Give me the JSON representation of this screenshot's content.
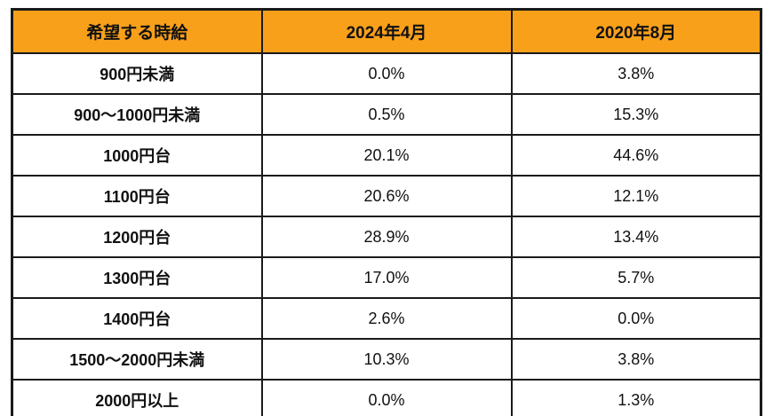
{
  "style": {
    "header_bg": "#F9A01B",
    "border_color": "#1a1a1a",
    "text_color": "#111111",
    "page_bg": "#ffffff"
  },
  "chart_data": {
    "type": "table",
    "title": "",
    "columns": [
      "希望する時給",
      "2024年4月",
      "2020年8月"
    ],
    "rows": [
      [
        "900円未満",
        "0.0%",
        "3.8%"
      ],
      [
        "900〜1000円未満",
        "0.5%",
        "15.3%"
      ],
      [
        "1000円台",
        "20.1%",
        "44.6%"
      ],
      [
        "1100円台",
        "20.6%",
        "12.1%"
      ],
      [
        "1200円台",
        "28.9%",
        "13.4%"
      ],
      [
        "1300円台",
        "17.0%",
        "5.7%"
      ],
      [
        "1400円台",
        "2.6%",
        "0.0%"
      ],
      [
        "1500〜2000円未満",
        "10.3%",
        "3.8%"
      ],
      [
        "2000円以上",
        "0.0%",
        "1.3%"
      ]
    ],
    "categories": [
      "900円未満",
      "900〜1000円未満",
      "1000円台",
      "1100円台",
      "1200円台",
      "1300円台",
      "1400円台",
      "1500〜2000円未満",
      "2000円以上"
    ],
    "series": [
      {
        "name": "2024年4月",
        "values": [
          0.0,
          0.5,
          20.1,
          20.6,
          28.9,
          17.0,
          2.6,
          10.3,
          0.0
        ]
      },
      {
        "name": "2020年8月",
        "values": [
          3.8,
          15.3,
          44.6,
          12.1,
          13.4,
          5.7,
          0.0,
          3.8,
          1.3
        ]
      }
    ],
    "value_unit": "%",
    "legend_position": "header-row",
    "grid": true
  }
}
